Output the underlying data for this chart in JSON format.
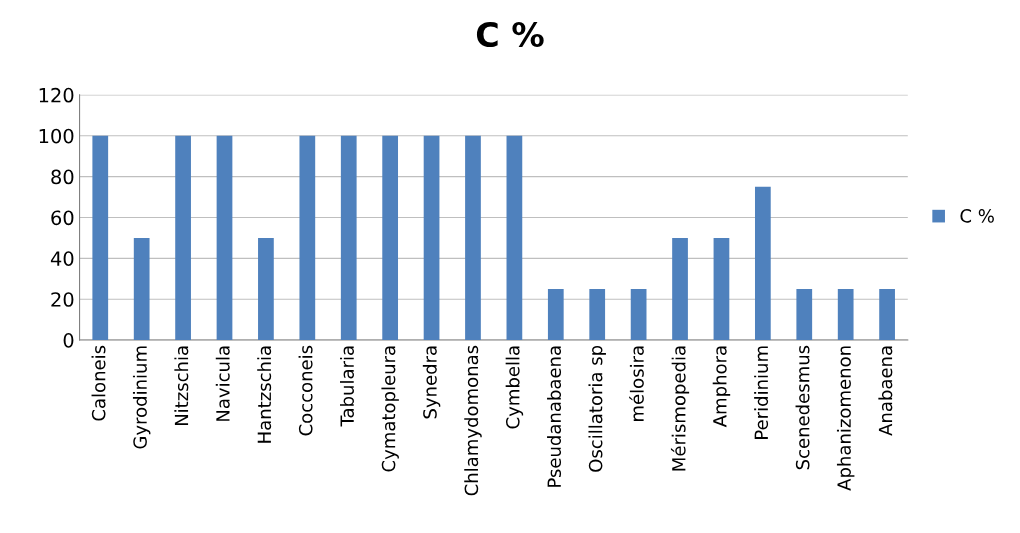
{
  "chart_data": {
    "type": "bar",
    "title": "C %",
    "categories": [
      "Caloneis",
      "Gyrodinium",
      "Nitzschia",
      "Navicula",
      "Hantzschia",
      "Cocconeis",
      "Tabularia",
      "Cymatopleura",
      "Synedra",
      "Chlamydomonas",
      "Cymbella",
      "Pseudanabaena",
      "Oscillatoria sp",
      "mélosira",
      "Mérismopedia",
      "Amphora",
      "Peridinium",
      "Scenedesmus",
      "Aphanizomenon",
      "Anabaena"
    ],
    "series": [
      {
        "name": "C %",
        "color": "#4f81bd",
        "values": [
          100,
          50,
          100,
          100,
          50,
          100,
          100,
          100,
          100,
          100,
          100,
          25,
          25,
          25,
          50,
          50,
          75,
          25,
          25,
          25
        ]
      }
    ],
    "ylim": [
      0,
      120
    ],
    "yticks": [
      0,
      20,
      40,
      60,
      80,
      100,
      120
    ],
    "grid": "y",
    "legend": "right"
  }
}
